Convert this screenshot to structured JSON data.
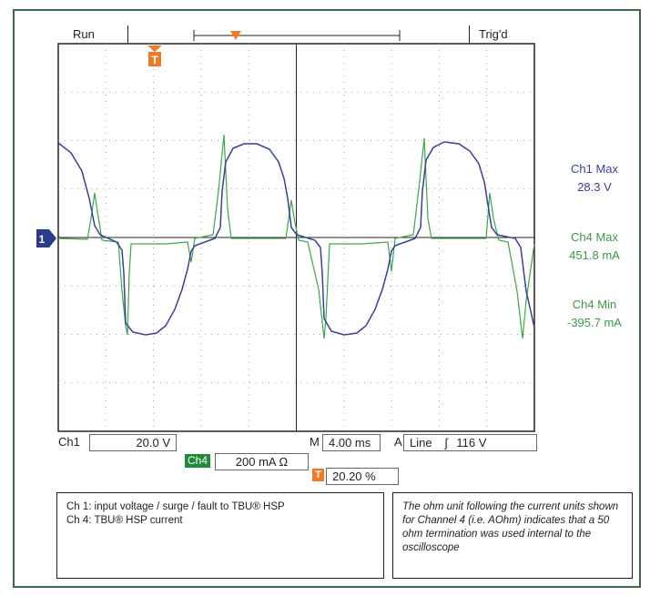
{
  "status": {
    "run": "Run",
    "trig": "Trig'd"
  },
  "markers": {
    "trigger": "T",
    "ground": "1"
  },
  "measurements": {
    "ch1_max_label": "Ch1 Max",
    "ch1_max_value": "28.3 V",
    "ch4_max_label": "Ch4 Max",
    "ch4_max_value": "451.8 mA",
    "ch4_min_label": "Ch4 Min",
    "ch4_min_value": "-395.7 mA"
  },
  "readouts": {
    "ch1_label": "Ch1",
    "ch1_scale": "20.0 V",
    "time_label": "M",
    "time_scale": "4.00 ms",
    "trig_label": "A",
    "trig_source": "Line",
    "trig_level": "116 V",
    "ch4_label": "Ch4",
    "ch4_scale": "200 mA Ω",
    "trig_pos": "20.20 %"
  },
  "notes": {
    "left_line1": "Ch 1:  input voltage / surge / fault to TBU® HSP",
    "left_line2": "Ch 4:  TBU® HSP current",
    "right": "The ohm unit following the current units shown for Channel 4 (i.e. AOhm) indicates that a 50 ohm termination was used internal to the oscilloscope"
  },
  "colors": {
    "ch1": "#3a3f9a",
    "ch4": "#3aa848",
    "trigger": "#f07a2a"
  }
}
